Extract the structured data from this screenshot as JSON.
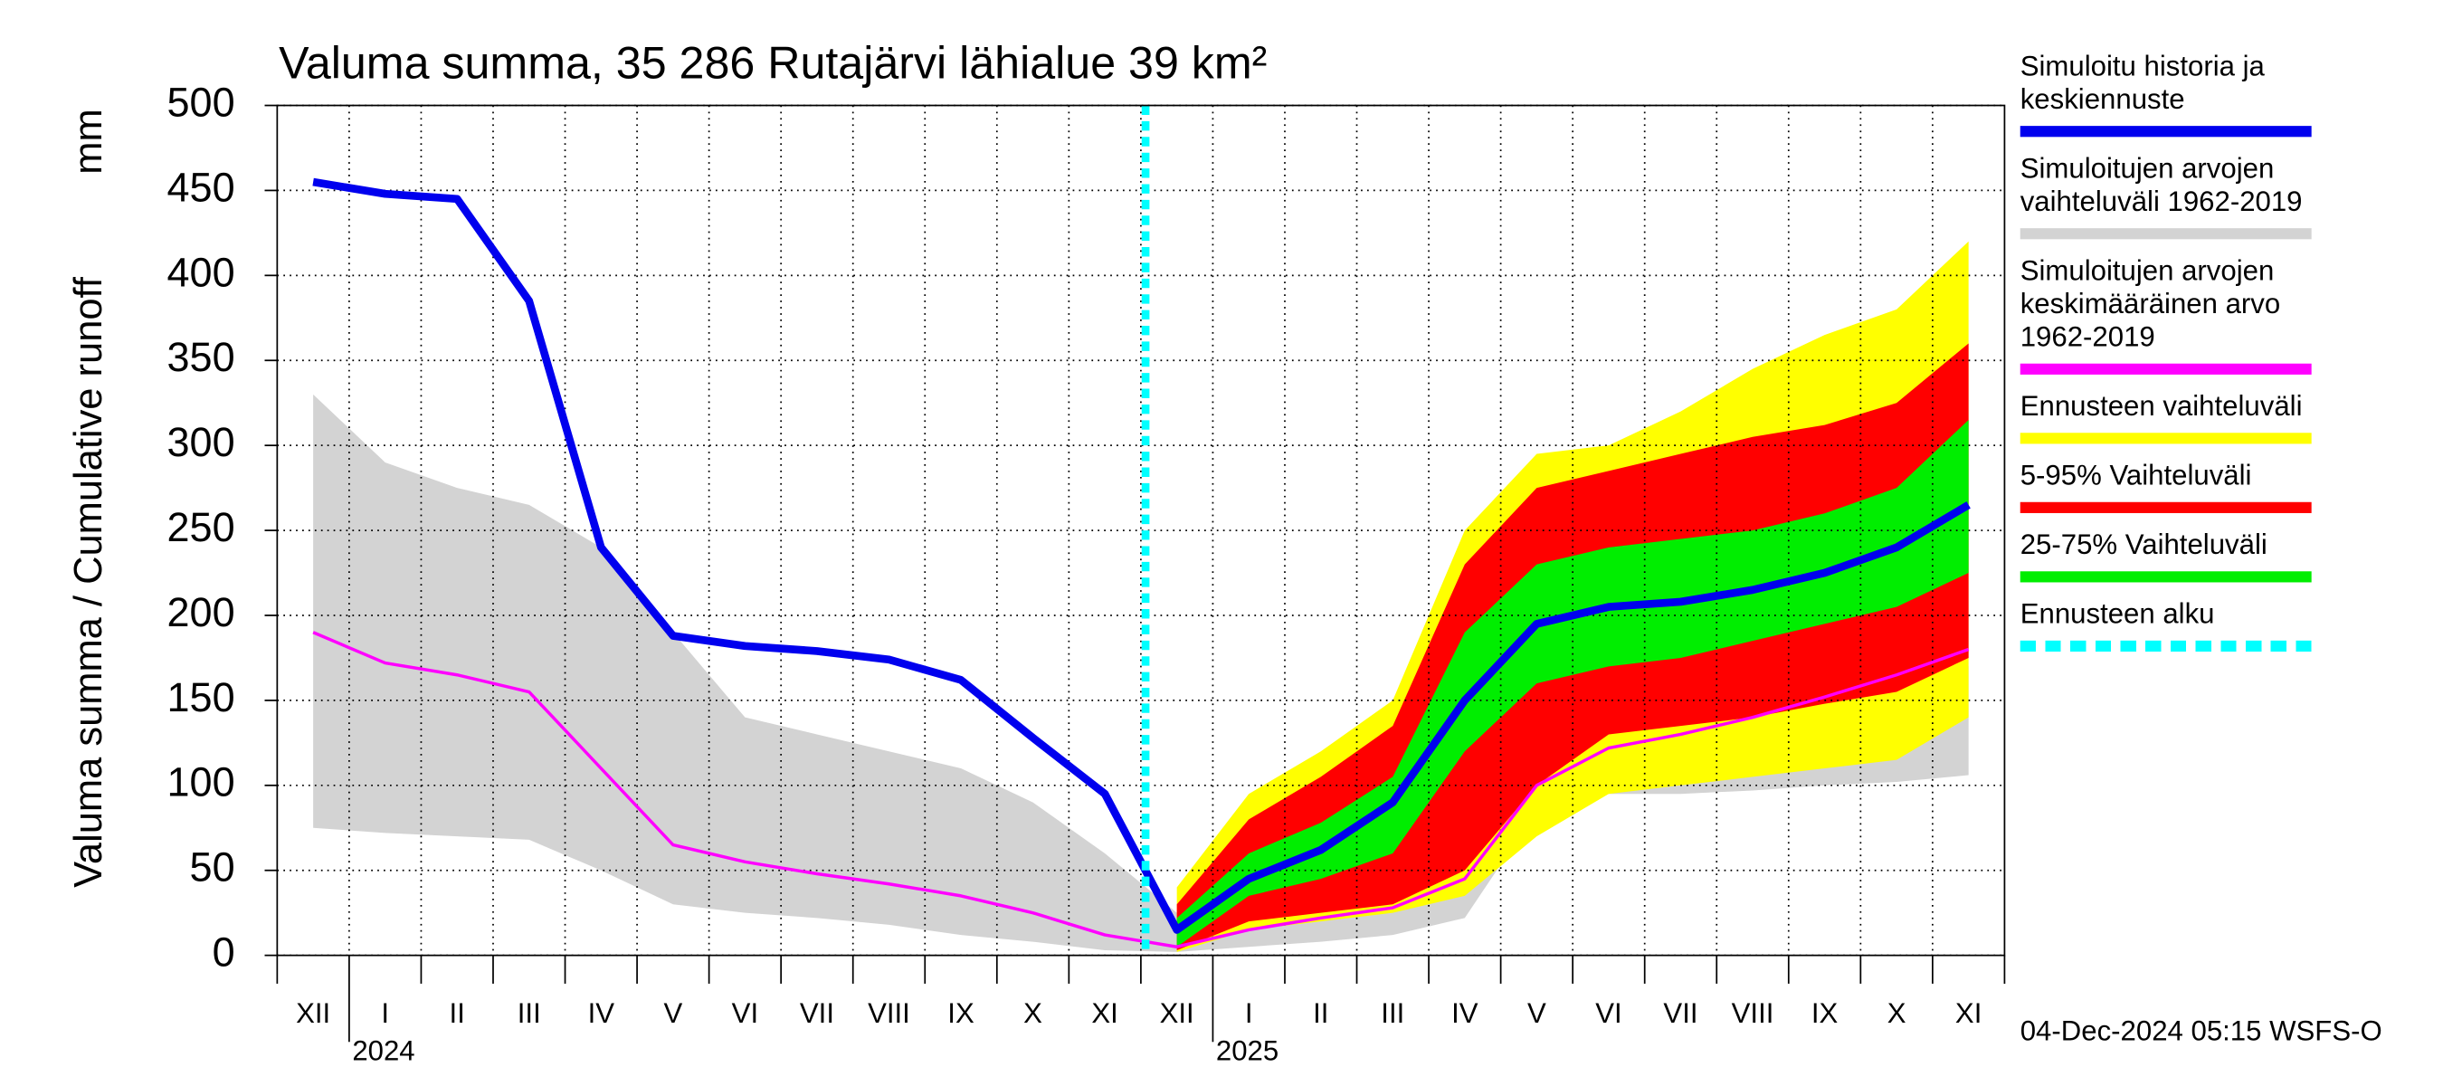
{
  "chart_data": {
    "type": "area-line",
    "title": "Valuma summa, 35 286 Rutajärvi lähialue 39 km²",
    "ylabel": "Valuma summa / Cumulative runoff",
    "yunit": "mm",
    "footer": "04-Dec-2024 05:15 WSFS-O",
    "categories": [
      "XII",
      "I",
      "II",
      "III",
      "IV",
      "V",
      "VI",
      "VII",
      "VIII",
      "IX",
      "X",
      "XI",
      "XII",
      "I",
      "II",
      "III",
      "IV",
      "V",
      "VI",
      "VII",
      "VIII",
      "IX",
      "X",
      "XI"
    ],
    "year_labels": [
      {
        "label": "2024",
        "category_index": 1
      },
      {
        "label": "2025",
        "category_index": 13
      }
    ],
    "ylim": [
      0,
      500
    ],
    "yticks": [
      0,
      50,
      100,
      150,
      200,
      250,
      300,
      350,
      400,
      450,
      500
    ],
    "grid": true,
    "series": [
      {
        "name": "Simuloitu historia ja\nkeskiennuste",
        "kind": "line",
        "color": "#0000ee",
        "width": 5,
        "values": [
          455,
          448,
          445,
          385,
          240,
          188,
          182,
          179,
          174,
          162,
          128,
          95,
          15,
          45,
          62,
          90,
          150,
          195,
          205,
          208,
          215,
          225,
          240,
          265
        ]
      },
      {
        "name": "Simuloitujen arvojen\nvaihteluväli 1962-2019",
        "kind": "band",
        "color": "#d3d3d3",
        "low": [
          75,
          72,
          70,
          68,
          50,
          30,
          25,
          22,
          18,
          12,
          8,
          3,
          2,
          5,
          8,
          12,
          22,
          85,
          95,
          95,
          97,
          100,
          102,
          106
        ],
        "values": [
          330,
          290,
          275,
          265,
          240,
          190,
          140,
          130,
          120,
          110,
          90,
          60,
          25,
          50,
          60,
          70,
          75,
          95,
          100,
          110,
          120,
          135,
          145,
          170
        ]
      },
      {
        "name": "Simuloitujen arvojen\nkeskimääräinen arvo\n   1962-2019",
        "kind": "line",
        "color": "#ff00ff",
        "width": 2,
        "values": [
          190,
          172,
          165,
          155,
          110,
          65,
          55,
          48,
          42,
          35,
          25,
          12,
          5,
          15,
          22,
          28,
          45,
          100,
          122,
          130,
          140,
          152,
          165,
          180
        ]
      },
      {
        "name": "Ennusteen vaihteluväli",
        "kind": "band",
        "color": "#ffff00",
        "low": [
          null,
          null,
          null,
          null,
          null,
          null,
          null,
          null,
          null,
          null,
          null,
          null,
          2,
          15,
          20,
          25,
          35,
          70,
          95,
          100,
          105,
          110,
          115,
          140
        ],
        "values": [
          null,
          null,
          null,
          null,
          null,
          null,
          null,
          null,
          null,
          null,
          null,
          null,
          40,
          95,
          120,
          150,
          250,
          295,
          300,
          320,
          345,
          365,
          380,
          420
        ]
      },
      {
        "name": "5-95% Vaihteluväli",
        "kind": "band",
        "color": "#ff0000",
        "low": [
          null,
          null,
          null,
          null,
          null,
          null,
          null,
          null,
          null,
          null,
          null,
          null,
          3,
          20,
          25,
          30,
          50,
          100,
          130,
          135,
          140,
          148,
          155,
          175
        ],
        "values": [
          null,
          null,
          null,
          null,
          null,
          null,
          null,
          null,
          null,
          null,
          null,
          null,
          30,
          80,
          105,
          135,
          230,
          275,
          285,
          295,
          305,
          312,
          325,
          360
        ]
      },
      {
        "name": "25-75% Vaihteluväli",
        "kind": "band",
        "color": "#00ee00",
        "low": [
          null,
          null,
          null,
          null,
          null,
          null,
          null,
          null,
          null,
          null,
          null,
          null,
          5,
          35,
          45,
          60,
          120,
          160,
          170,
          175,
          185,
          195,
          205,
          225
        ],
        "values": [
          null,
          null,
          null,
          null,
          null,
          null,
          null,
          null,
          null,
          null,
          null,
          null,
          22,
          60,
          78,
          105,
          190,
          230,
          240,
          245,
          250,
          260,
          275,
          315
        ]
      }
    ],
    "marker": {
      "name": "Ennusteen alku",
      "color": "#00ffff",
      "category_index": 12
    }
  }
}
